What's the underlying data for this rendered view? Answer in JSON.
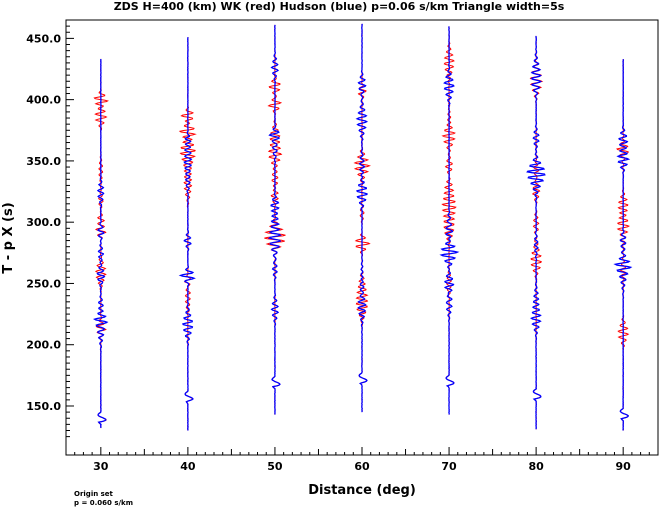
{
  "chart_data": {
    "type": "line",
    "title": "ZDS H=400 (km) WK (red) Hudson (blue) p=0.06 s/km Triangle width=5s",
    "xlabel": "Distance (deg)",
    "ylabel": "T - p X (s)",
    "xlim": [
      26,
      94
    ],
    "ylim": [
      110,
      465
    ],
    "x_ticks": [
      "30",
      "40",
      "50",
      "60",
      "70",
      "80",
      "90"
    ],
    "y_ticks": [
      "150.0",
      "200.0",
      "250.0",
      "300.0",
      "350.0",
      "400.0",
      "450.0"
    ],
    "grid": false,
    "legend": "none",
    "series_colors": {
      "WK": "#ff0000",
      "Hudson": "#0000ff"
    },
    "traces": [
      {
        "distance": 30,
        "t_start": 132,
        "t_end": 433,
        "first_arrival": 137
      },
      {
        "distance": 40,
        "t_start": 130,
        "t_end": 451,
        "first_arrival": 154
      },
      {
        "distance": 50,
        "t_start": 143,
        "t_end": 461,
        "first_arrival": 166
      },
      {
        "distance": 60,
        "t_start": 145,
        "t_end": 462,
        "first_arrival": 169
      },
      {
        "distance": 70,
        "t_start": 143,
        "t_end": 460,
        "first_arrival": 167
      },
      {
        "distance": 80,
        "t_start": 131,
        "t_end": 452,
        "first_arrival": 156
      },
      {
        "distance": 90,
        "t_start": 130,
        "t_end": 433,
        "first_arrival": 140
      }
    ]
  },
  "footer": {
    "line1": "Origin set",
    "line2": "p = 0.060 s/km"
  }
}
